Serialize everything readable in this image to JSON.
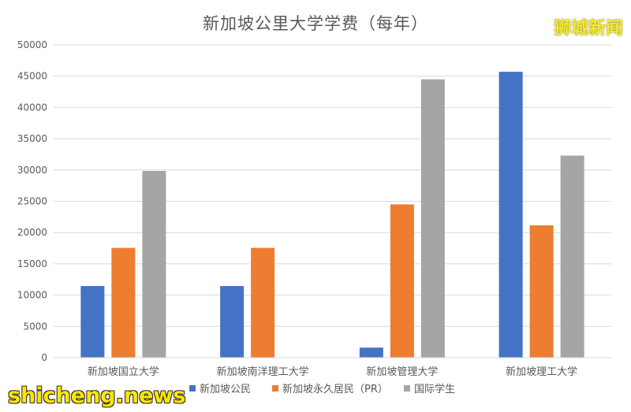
{
  "watermarks": {
    "top_right": "狮城新闻",
    "bottom_left": "shicheng.news"
  },
  "colors": {
    "citizen": "#4472c4",
    "pr": "#ed7d31",
    "international": "#a5a5a5",
    "grid": "#d9d9d9",
    "axis_text": "#595959"
  },
  "chart_data": {
    "type": "bar",
    "title": "新加坡公里大学学费（每年）",
    "xlabel": "",
    "ylabel": "",
    "ylim": [
      0,
      50000
    ],
    "yticks": [
      "0",
      "5000",
      "10000",
      "15000",
      "20000",
      "25000",
      "30000",
      "35000",
      "40000",
      "45000",
      "50000"
    ],
    "grid": true,
    "legend_position": "bottom",
    "categories": [
      "新加坡国立大学",
      "新加坡南洋理工大学",
      "新加坡管理大学",
      "新加坡理工大学"
    ],
    "series": [
      {
        "name": "新加坡公民",
        "color": "#4472c4",
        "values": [
          11450,
          11450,
          1600,
          45700
        ]
      },
      {
        "name": "新加坡永久居民（PR）",
        "color": "#ed7d31",
        "values": [
          17550,
          17550,
          24500,
          21150
        ]
      },
      {
        "name": "国际学生",
        "color": "#a5a5a5",
        "values": [
          29850,
          null,
          44500,
          32300
        ]
      }
    ]
  }
}
